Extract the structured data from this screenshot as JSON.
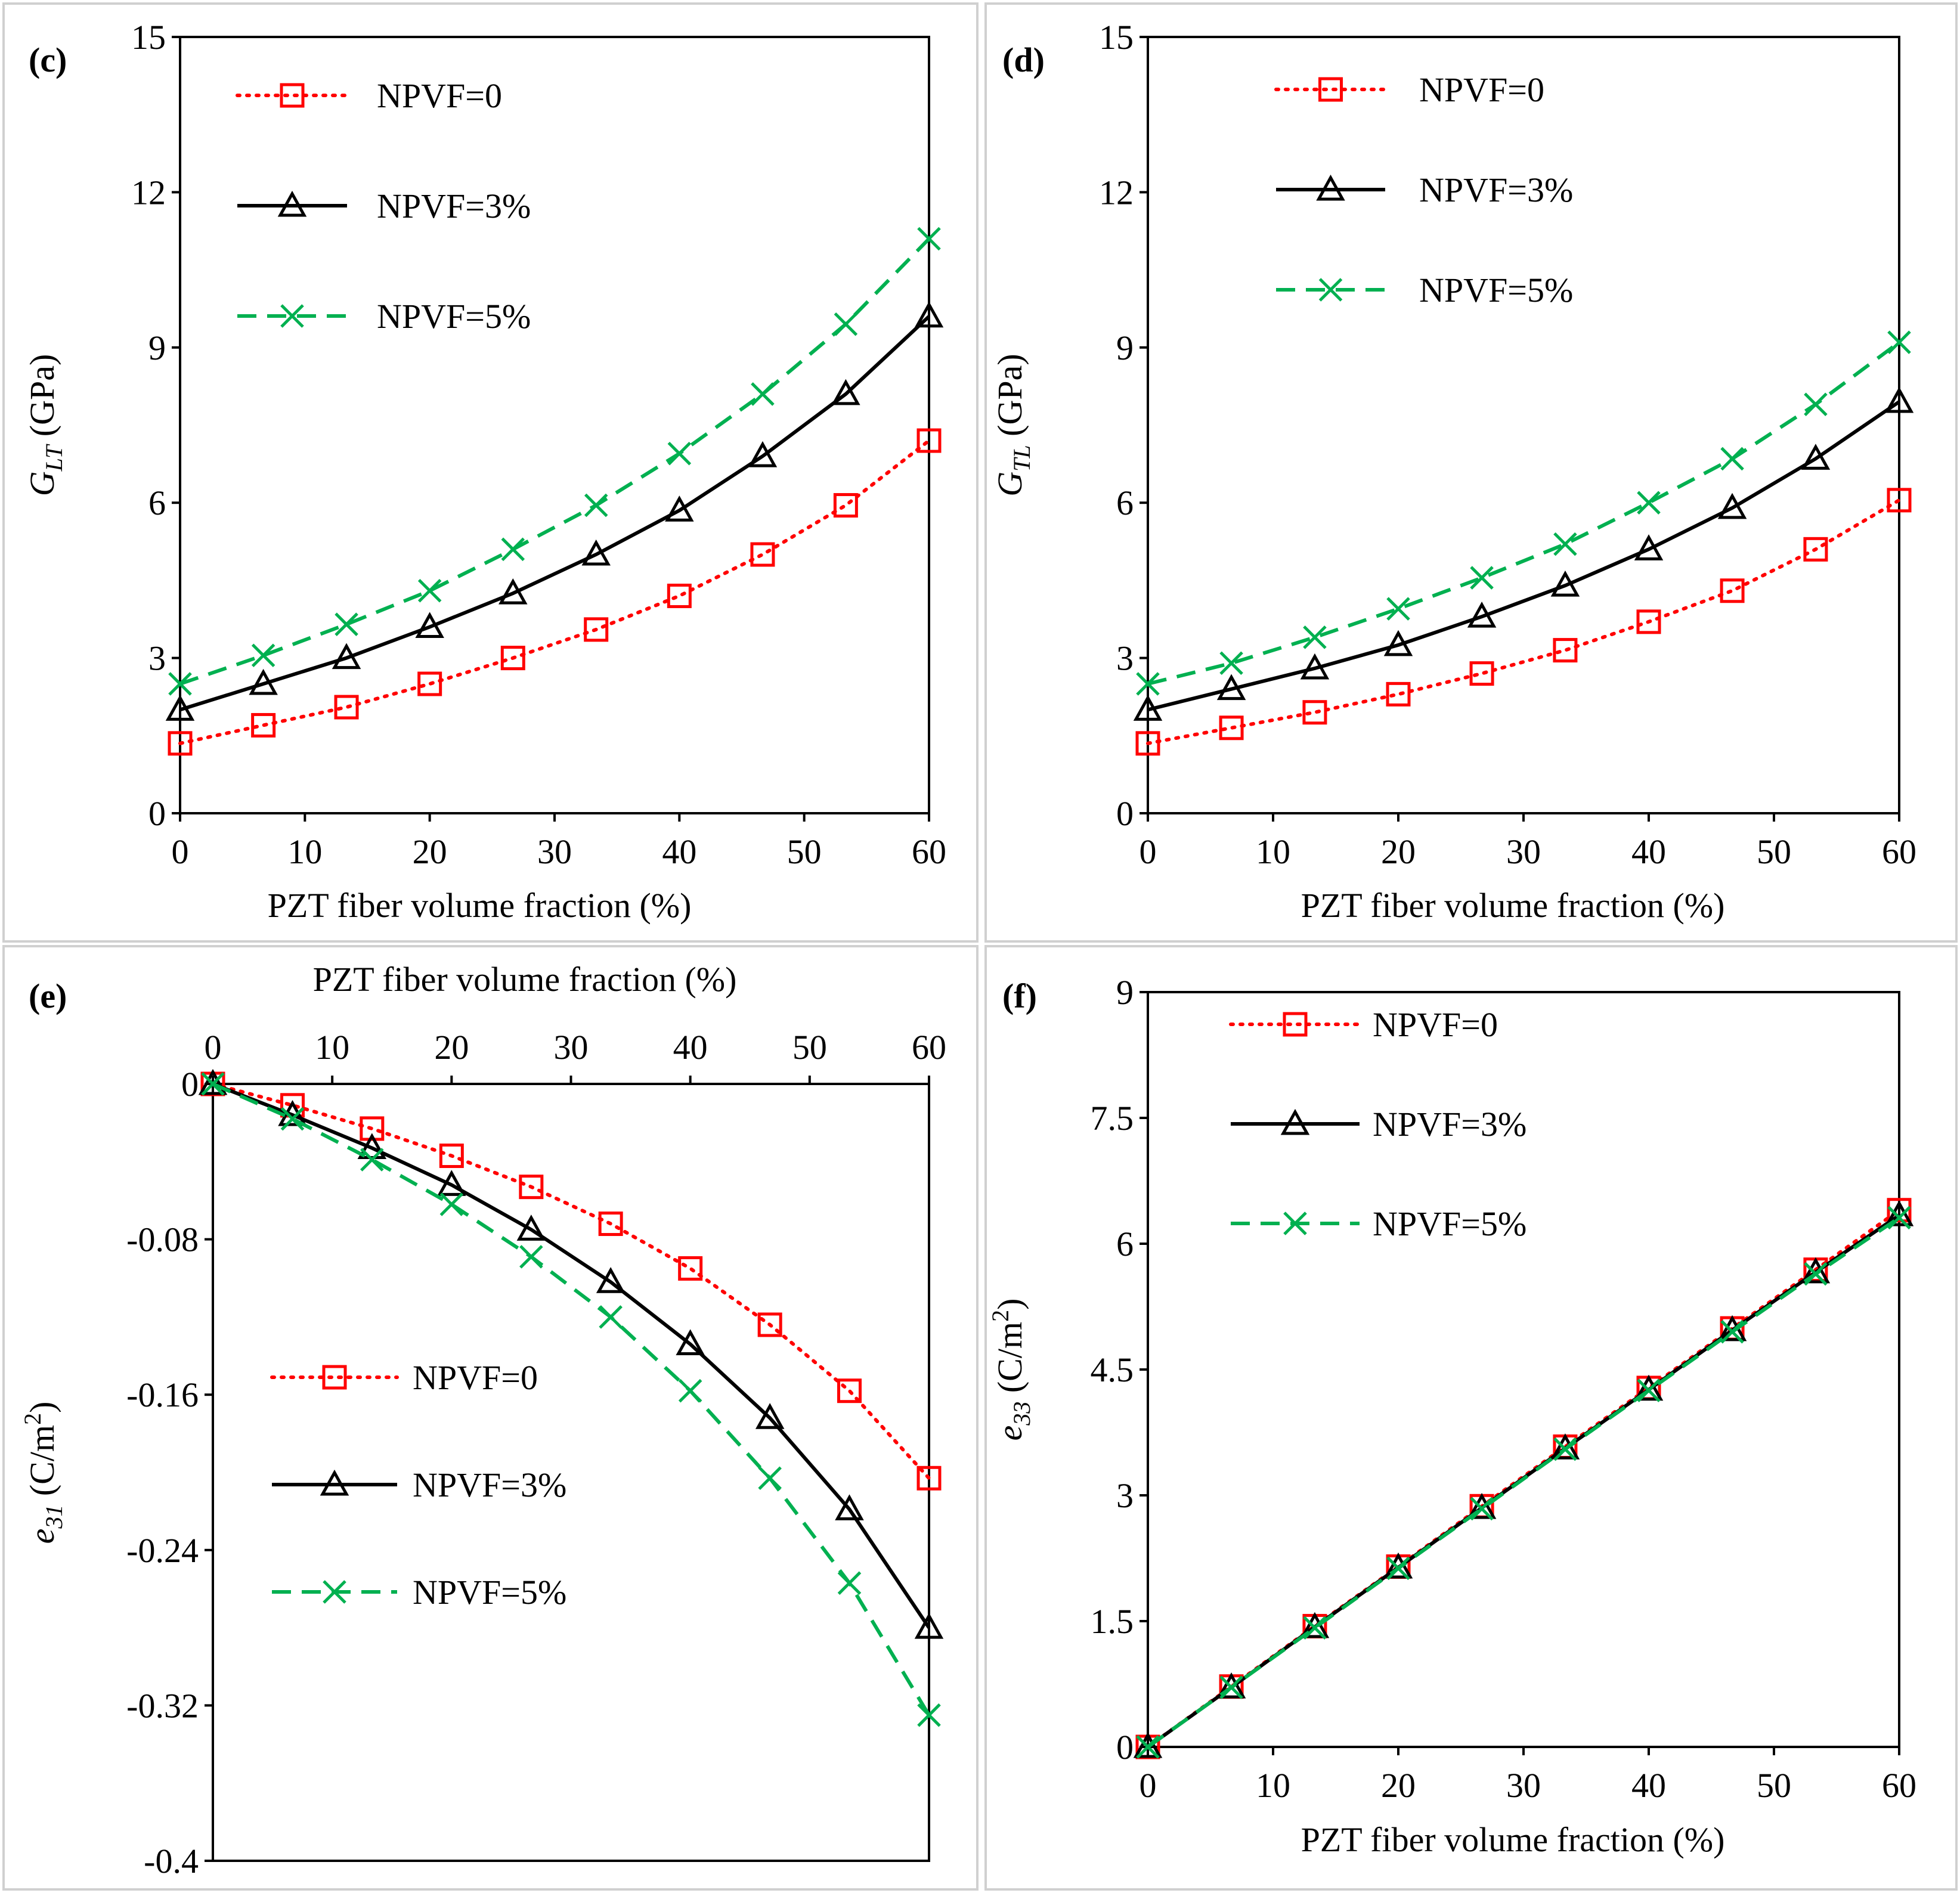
{
  "colors": {
    "npvf0": "#ff0000",
    "npvf3": "#000000",
    "npvf5": "#00b050",
    "frame": "#d0d0d0",
    "axis": "#000000"
  },
  "chart_data": [
    {
      "type": "line",
      "panel_label": "(c)",
      "xlabel": "PZT fiber volume fraction (%)",
      "ylabel_main": "G",
      "ylabel_sub": "LT",
      "ylabel_rest": " (GPa)",
      "xlim": [
        0,
        60
      ],
      "ylim": [
        0,
        15
      ],
      "xticks": [
        0,
        10,
        20,
        30,
        40,
        50,
        60
      ],
      "yticks": [
        0,
        3,
        6,
        9,
        12,
        15
      ],
      "x_axis_position": "bottom",
      "legend_position": "top-left",
      "series": [
        {
          "name": "NPVF=0",
          "marker": "square",
          "dash": "dotted",
          "x": [
            0,
            6.67,
            13.33,
            20,
            26.67,
            33.33,
            40,
            46.67,
            53.33,
            60
          ],
          "y": [
            1.35,
            1.7,
            2.05,
            2.5,
            3.0,
            3.55,
            4.2,
            5.0,
            5.95,
            7.2
          ]
        },
        {
          "name": "NPVF=3%",
          "marker": "triangle",
          "dash": "solid",
          "x": [
            0,
            6.67,
            13.33,
            20,
            26.67,
            33.33,
            40,
            46.67,
            53.33,
            60
          ],
          "y": [
            2.0,
            2.5,
            3.0,
            3.6,
            4.25,
            5.0,
            5.85,
            6.9,
            8.1,
            9.6
          ]
        },
        {
          "name": "NPVF=5%",
          "marker": "x",
          "dash": "dashed",
          "x": [
            0,
            6.67,
            13.33,
            20,
            26.67,
            33.33,
            40,
            46.67,
            53.33,
            60
          ],
          "y": [
            2.5,
            3.05,
            3.65,
            4.3,
            5.1,
            5.95,
            6.95,
            8.1,
            9.45,
            11.1
          ]
        }
      ]
    },
    {
      "type": "line",
      "panel_label": "(d)",
      "xlabel": "PZT fiber volume fraction (%)",
      "ylabel_main": "G",
      "ylabel_sub": "TL",
      "ylabel_rest": " (GPa)",
      "xlim": [
        0,
        60
      ],
      "ylim": [
        0,
        15
      ],
      "xticks": [
        0,
        10,
        20,
        30,
        40,
        50,
        60
      ],
      "yticks": [
        0,
        3,
        6,
        9,
        12,
        15
      ],
      "x_axis_position": "bottom",
      "legend_position": "top-left",
      "series": [
        {
          "name": "NPVF=0",
          "marker": "square",
          "dash": "dotted",
          "x": [
            0,
            6.67,
            13.33,
            20,
            26.67,
            33.33,
            40,
            46.67,
            53.33,
            60
          ],
          "y": [
            1.35,
            1.65,
            1.95,
            2.3,
            2.7,
            3.15,
            3.7,
            4.3,
            5.1,
            6.05
          ]
        },
        {
          "name": "NPVF=3%",
          "marker": "triangle",
          "dash": "solid",
          "x": [
            0,
            6.67,
            13.33,
            20,
            26.67,
            33.33,
            40,
            46.67,
            53.33,
            60
          ],
          "y": [
            2.0,
            2.4,
            2.8,
            3.25,
            3.8,
            4.4,
            5.1,
            5.9,
            6.85,
            7.95
          ]
        },
        {
          "name": "NPVF=5%",
          "marker": "x",
          "dash": "dashed",
          "x": [
            0,
            6.67,
            13.33,
            20,
            26.67,
            33.33,
            40,
            46.67,
            53.33,
            60
          ],
          "y": [
            2.5,
            2.9,
            3.4,
            3.95,
            4.55,
            5.2,
            6.0,
            6.85,
            7.9,
            9.1
          ]
        }
      ]
    },
    {
      "type": "line",
      "panel_label": "(e)",
      "xlabel": "PZT fiber volume fraction (%)",
      "ylabel_main": "e",
      "ylabel_sub": "31",
      "ylabel_rest": " (C/m",
      "ylabel_sup": "2",
      "ylabel_end": ")",
      "xlim": [
        0,
        60
      ],
      "ylim": [
        -0.4,
        0
      ],
      "xticks": [
        0,
        10,
        20,
        30,
        40,
        50,
        60
      ],
      "yticks": [
        -0.4,
        -0.32,
        -0.24,
        -0.16,
        -0.08,
        0
      ],
      "x_axis_position": "top",
      "legend_position": "center-left",
      "series": [
        {
          "name": "NPVF=0",
          "marker": "square",
          "dash": "dotted",
          "x": [
            0,
            6.67,
            13.33,
            20,
            26.67,
            33.33,
            40,
            46.67,
            53.33,
            60
          ],
          "y": [
            0,
            -0.011,
            -0.023,
            -0.037,
            -0.053,
            -0.072,
            -0.095,
            -0.124,
            -0.158,
            -0.203
          ]
        },
        {
          "name": "NPVF=3%",
          "marker": "triangle",
          "dash": "solid",
          "x": [
            0,
            6.67,
            13.33,
            20,
            26.67,
            33.33,
            40,
            46.67,
            53.33,
            60
          ],
          "y": [
            0,
            -0.016,
            -0.033,
            -0.052,
            -0.075,
            -0.102,
            -0.134,
            -0.172,
            -0.219,
            -0.28
          ]
        },
        {
          "name": "NPVF=5%",
          "marker": "x",
          "dash": "dashed",
          "x": [
            0,
            6.67,
            13.33,
            20,
            26.67,
            33.33,
            40,
            46.67,
            53.33,
            60
          ],
          "y": [
            0,
            -0.018,
            -0.039,
            -0.062,
            -0.089,
            -0.12,
            -0.158,
            -0.203,
            -0.257,
            -0.325
          ]
        }
      ]
    },
    {
      "type": "line",
      "panel_label": "(f)",
      "xlabel": "PZT fiber volume fraction (%)",
      "ylabel_main": "e",
      "ylabel_sub": "33",
      "ylabel_rest": " (C/m",
      "ylabel_sup": "2",
      "ylabel_end": ")",
      "xlim": [
        0,
        60
      ],
      "ylim": [
        0,
        9
      ],
      "xticks": [
        0,
        10,
        20,
        30,
        40,
        50,
        60
      ],
      "yticks": [
        0,
        1.5,
        3,
        4.5,
        6,
        7.5,
        9
      ],
      "x_axis_position": "bottom",
      "legend_position": "top-left",
      "series": [
        {
          "name": "NPVF=0",
          "marker": "square",
          "dash": "dotted",
          "x": [
            0,
            6.67,
            13.33,
            20,
            26.67,
            33.33,
            40,
            46.67,
            53.33,
            60
          ],
          "y": [
            0,
            0.72,
            1.44,
            2.15,
            2.87,
            3.58,
            4.28,
            4.99,
            5.69,
            6.4
          ]
        },
        {
          "name": "NPVF=3%",
          "marker": "triangle",
          "dash": "solid",
          "x": [
            0,
            6.67,
            13.33,
            20,
            26.67,
            33.33,
            40,
            46.67,
            53.33,
            60
          ],
          "y": [
            0,
            0.71,
            1.43,
            2.14,
            2.85,
            3.56,
            4.26,
            4.97,
            5.66,
            6.34
          ]
        },
        {
          "name": "NPVF=5%",
          "marker": "x",
          "dash": "dashed",
          "x": [
            0,
            6.67,
            13.33,
            20,
            26.67,
            33.33,
            40,
            46.67,
            53.33,
            60
          ],
          "y": [
            0,
            0.71,
            1.42,
            2.13,
            2.84,
            3.55,
            4.25,
            4.95,
            5.64,
            6.31
          ]
        }
      ]
    }
  ]
}
